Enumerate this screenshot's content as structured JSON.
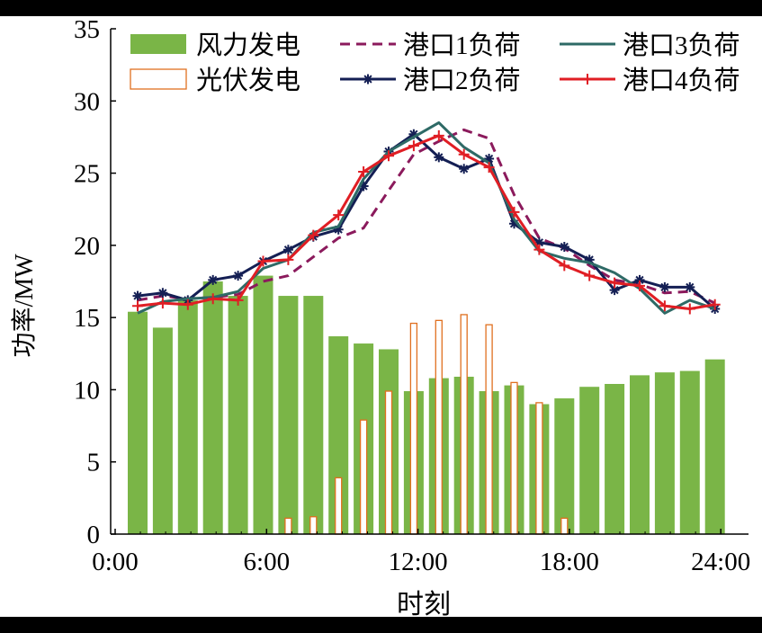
{
  "chart_data": {
    "type": "bar",
    "xlabel": "时刻",
    "ylabel": "功率/MW",
    "xlim": [
      0,
      24
    ],
    "ylim": [
      0,
      35
    ],
    "x_ticks": [
      0,
      6,
      12,
      18,
      24
    ],
    "x_tick_labels": [
      "0:00",
      "6:00",
      "12:00",
      "18:00",
      "24:00"
    ],
    "y_ticks": [
      0,
      5,
      10,
      15,
      20,
      25,
      30,
      35
    ],
    "y_tick_labels": [
      "0",
      "5",
      "10",
      "15",
      "20",
      "25",
      "30",
      "35"
    ],
    "legend_position": "top",
    "hours": [
      1,
      2,
      3,
      4,
      5,
      6,
      7,
      8,
      9,
      10,
      11,
      12,
      13,
      14,
      15,
      16,
      17,
      18,
      19,
      20,
      21,
      22,
      23,
      24
    ],
    "bar_series": [
      {
        "name": "风力发电",
        "style": "filled",
        "color": "#7ab547",
        "values": [
          15.4,
          14.3,
          16.2,
          17.5,
          16.5,
          17.9,
          16.5,
          16.5,
          13.7,
          13.2,
          12.8,
          9.9,
          10.8,
          10.9,
          9.9,
          10.3,
          9.0,
          9.4,
          10.2,
          10.4,
          11.0,
          11.2,
          11.3,
          12.1
        ]
      },
      {
        "name": "光伏发电",
        "style": "outline",
        "color": "#e07020",
        "values": [
          0,
          0,
          0,
          0,
          0,
          0,
          1.1,
          1.2,
          3.9,
          7.9,
          9.9,
          14.6,
          14.8,
          15.2,
          14.5,
          10.5,
          9.1,
          1.1,
          0,
          0,
          0,
          0,
          0,
          0
        ]
      }
    ],
    "line_series": [
      {
        "name": "港口1负荷",
        "color": "#8b1a5c",
        "dash": "dashed",
        "marker": "none",
        "values": [
          16.2,
          16.5,
          16.3,
          16.4,
          16.6,
          17.5,
          17.9,
          19.2,
          20.5,
          21.2,
          23.8,
          26.3,
          27.2,
          28.0,
          27.4,
          23.5,
          20.5,
          19.8,
          18.6,
          17.6,
          17.3,
          16.7,
          16.8,
          16.0
        ]
      },
      {
        "name": "港口2负荷",
        "color": "#141f54",
        "dash": "solid",
        "marker": "star",
        "values": [
          16.5,
          16.7,
          16.2,
          17.6,
          17.9,
          18.9,
          19.7,
          20.6,
          21.1,
          24.1,
          26.5,
          27.7,
          26.1,
          25.3,
          26.0,
          21.5,
          20.2,
          19.9,
          19.0,
          16.9,
          17.6,
          17.1,
          17.1,
          15.6
        ]
      },
      {
        "name": "港口3负荷",
        "color": "#2e6a66",
        "dash": "solid",
        "marker": "none",
        "values": [
          15.3,
          16.1,
          16.3,
          16.4,
          16.8,
          18.4,
          19.0,
          20.9,
          21.3,
          24.6,
          26.5,
          27.5,
          28.5,
          26.8,
          25.7,
          21.8,
          19.6,
          19.1,
          18.8,
          18.1,
          17.0,
          15.3,
          16.2,
          15.6
        ]
      },
      {
        "name": "港口4负荷",
        "color": "#e01e24",
        "dash": "solid",
        "marker": "plus",
        "values": [
          15.8,
          16.0,
          15.9,
          16.3,
          16.2,
          18.9,
          19.0,
          20.7,
          22.1,
          25.1,
          26.2,
          26.9,
          27.6,
          26.3,
          25.4,
          22.3,
          19.7,
          18.6,
          17.9,
          17.4,
          17.2,
          15.8,
          15.6,
          15.9
        ]
      }
    ]
  }
}
